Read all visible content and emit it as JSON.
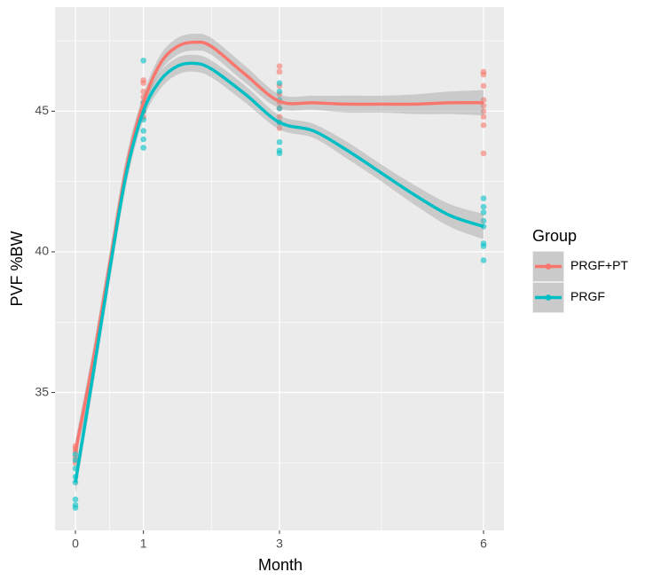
{
  "chart_data": {
    "type": "scatter",
    "x_label": "Month",
    "y_label": "PVF %BW",
    "legend_title": "Group",
    "xlim": [
      -0.3,
      6.3
    ],
    "ylim": [
      30.1,
      48.7
    ],
    "xticks": [
      0,
      1,
      3,
      6
    ],
    "yticks": [
      35,
      40,
      45
    ],
    "x_minor_ticks": [
      0.5,
      2,
      4.5
    ],
    "y_minor_ticks": [
      32.5,
      37.5,
      42.5,
      47.5
    ],
    "grid": true,
    "legend": "right",
    "smooth_x": [
      0,
      0.25,
      0.5,
      0.75,
      1,
      1.25,
      1.5,
      1.75,
      2,
      2.5,
      3,
      3.5,
      4,
      4.5,
      5,
      5.5,
      6
    ],
    "series": [
      {
        "name": "PRGF+PT",
        "color": "#F8766D",
        "x": [
          0,
          0,
          0,
          0,
          0,
          1,
          1,
          1,
          1,
          1,
          1,
          1,
          3,
          3,
          3,
          3,
          3,
          3,
          3,
          3,
          3,
          6,
          6,
          6,
          6,
          6,
          6,
          6,
          6,
          6
        ],
        "values": [
          33.1,
          33.0,
          32.9,
          32.7,
          32.5,
          46.1,
          46.0,
          45.7,
          45.5,
          45.3,
          45.0,
          44.8,
          46.6,
          46.4,
          45.9,
          45.6,
          45.3,
          45.1,
          44.8,
          44.6,
          44.4,
          46.4,
          46.3,
          45.9,
          45.4,
          45.2,
          45.0,
          44.8,
          44.5,
          43.5
        ],
        "smooth_values": [
          32.9,
          36.0,
          39.5,
          43.0,
          45.3,
          46.7,
          47.3,
          47.45,
          47.3,
          46.3,
          45.35,
          45.3,
          45.25,
          45.25,
          45.25,
          45.3,
          45.3
        ],
        "band_lower": [
          32.5,
          35.55,
          39.05,
          42.6,
          45.0,
          46.4,
          47.0,
          47.15,
          47.0,
          46.0,
          45.1,
          45.05,
          44.95,
          44.95,
          44.9,
          44.9,
          44.85
        ],
        "band_upper": [
          33.3,
          36.45,
          39.95,
          43.4,
          45.6,
          47.0,
          47.6,
          47.75,
          47.6,
          46.6,
          45.6,
          45.55,
          45.55,
          45.55,
          45.6,
          45.7,
          45.75
        ]
      },
      {
        "name": "PRGF",
        "color": "#00BFC4",
        "x": [
          0,
          0,
          0,
          0,
          0,
          0,
          0,
          0,
          1,
          1,
          1,
          1,
          1,
          1,
          1,
          3,
          3,
          3,
          3,
          3,
          3,
          3,
          3,
          6,
          6,
          6,
          6,
          6,
          6,
          6,
          6
        ],
        "values": [
          32.8,
          32.6,
          32.3,
          32.0,
          31.8,
          31.2,
          31.0,
          30.9,
          46.8,
          45.3,
          45.0,
          44.7,
          44.3,
          44.0,
          43.7,
          46.0,
          45.7,
          45.4,
          45.1,
          44.6,
          43.9,
          43.6,
          43.5,
          41.9,
          41.6,
          41.4,
          41.1,
          40.9,
          40.3,
          40.2,
          39.7
        ],
        "smooth_values": [
          31.8,
          35.5,
          39.3,
          42.8,
          45.0,
          46.1,
          46.6,
          46.7,
          46.5,
          45.6,
          44.6,
          44.3,
          43.6,
          42.8,
          42.0,
          41.3,
          40.9
        ],
        "band_lower": [
          31.4,
          35.05,
          38.85,
          42.4,
          44.7,
          45.8,
          46.3,
          46.4,
          46.2,
          45.3,
          44.35,
          44.05,
          43.3,
          42.5,
          41.65,
          40.9,
          40.45
        ],
        "band_upper": [
          32.2,
          35.95,
          39.75,
          43.2,
          45.3,
          46.4,
          46.9,
          47.0,
          46.8,
          45.9,
          44.85,
          44.55,
          43.9,
          43.1,
          42.35,
          41.7,
          41.35
        ]
      }
    ]
  }
}
